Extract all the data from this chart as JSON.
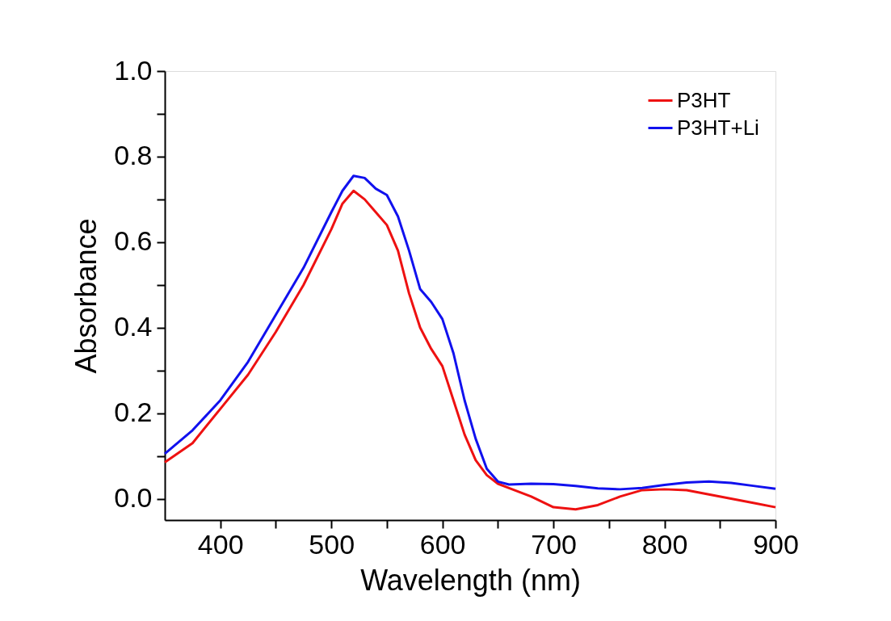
{
  "chart_data": {
    "type": "line",
    "xlabel": "Wavelength (nm)",
    "ylabel": "Absorbance",
    "x": [
      350,
      375,
      400,
      425,
      450,
      475,
      500,
      510,
      520,
      530,
      540,
      550,
      560,
      570,
      580,
      590,
      600,
      610,
      620,
      630,
      640,
      650,
      660,
      680,
      700,
      720,
      740,
      760,
      780,
      800,
      820,
      840,
      860,
      880,
      900
    ],
    "series": [
      {
        "name": "P3HT",
        "color": "#ee1111",
        "values": [
          0.085,
          0.13,
          0.21,
          0.29,
          0.39,
          0.5,
          0.63,
          0.69,
          0.72,
          0.7,
          0.67,
          0.64,
          0.58,
          0.48,
          0.4,
          0.35,
          0.31,
          0.23,
          0.15,
          0.09,
          0.055,
          0.035,
          0.025,
          0.005,
          -0.02,
          -0.025,
          -0.015,
          0.005,
          0.02,
          0.022,
          0.02,
          0.01,
          0.0,
          -0.01,
          -0.02
        ]
      },
      {
        "name": "P3HT+Li",
        "color": "#1111ee",
        "values": [
          0.105,
          0.16,
          0.23,
          0.32,
          0.43,
          0.54,
          0.67,
          0.72,
          0.755,
          0.75,
          0.725,
          0.71,
          0.66,
          0.58,
          0.49,
          0.46,
          0.42,
          0.34,
          0.23,
          0.14,
          0.07,
          0.04,
          0.033,
          0.035,
          0.034,
          0.03,
          0.024,
          0.022,
          0.025,
          0.032,
          0.038,
          0.04,
          0.037,
          0.03,
          0.023
        ]
      }
    ],
    "xlim": [
      350,
      900
    ],
    "xticks": [
      400,
      {
        "value": 450,
        "label": null
      },
      500,
      {
        "value": 550,
        "label": null
      },
      600,
      {
        "value": 650,
        "label": null
      },
      700,
      {
        "value": 750,
        "label": null
      },
      800,
      {
        "value": 850,
        "label": null
      },
      900
    ],
    "ylim": [
      -0.05,
      1.0
    ],
    "yticks": [
      {
        "value": 0,
        "label": "0.0"
      },
      {
        "value": 0.1,
        "label": null
      },
      0.2,
      {
        "value": 0.3,
        "label": null
      },
      0.4,
      {
        "value": 0.5,
        "label": null
      },
      0.6,
      {
        "value": 0.7,
        "label": null
      },
      0.8,
      {
        "value": 0.9,
        "label": null
      },
      {
        "value": 1,
        "label": "1.0"
      }
    ],
    "legend": "top right",
    "grid": false,
    "marker": "none",
    "line_style": "solid"
  }
}
